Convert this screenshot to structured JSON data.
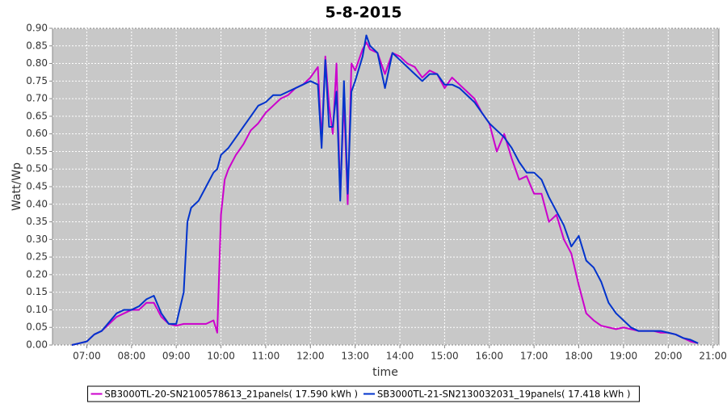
{
  "chart_data": {
    "type": "line",
    "title": "5-8-2015",
    "x_label": "time",
    "y_label": "Watt/Wp",
    "x": [
      "06:40",
      "06:50",
      "07:00",
      "07:10",
      "07:20",
      "07:30",
      "07:40",
      "07:50",
      "08:00",
      "08:10",
      "08:20",
      "08:30",
      "08:40",
      "08:50",
      "09:00",
      "09:10",
      "09:15",
      "09:20",
      "09:30",
      "09:40",
      "09:50",
      "09:55",
      "10:00",
      "10:05",
      "10:10",
      "10:20",
      "10:30",
      "10:40",
      "10:50",
      "11:00",
      "11:10",
      "11:20",
      "11:30",
      "11:40",
      "11:50",
      "12:00",
      "12:10",
      "12:15",
      "12:20",
      "12:25",
      "12:30",
      "12:35",
      "12:40",
      "12:45",
      "12:50",
      "12:55",
      "13:00",
      "13:10",
      "13:15",
      "13:20",
      "13:30",
      "13:40",
      "13:50",
      "14:00",
      "14:10",
      "14:20",
      "14:30",
      "14:40",
      "14:50",
      "15:00",
      "15:10",
      "15:20",
      "15:30",
      "15:40",
      "15:50",
      "16:00",
      "16:10",
      "16:20",
      "16:30",
      "16:40",
      "16:50",
      "17:00",
      "17:10",
      "17:20",
      "17:30",
      "17:40",
      "17:50",
      "18:00",
      "18:10",
      "18:20",
      "18:30",
      "18:40",
      "18:50",
      "19:00",
      "19:10",
      "19:20",
      "19:30",
      "19:40",
      "19:50",
      "20:00",
      "20:10",
      "20:20",
      "20:30",
      "20:40"
    ],
    "series": [
      {
        "name": "SB3000TL-20-SN2100578613_21panels( 17.590 kWh )",
        "color": "#cc00cc",
        "values": [
          0,
          0.005,
          0.01,
          0.03,
          0.04,
          0.06,
          0.08,
          0.09,
          0.1,
          0.1,
          0.12,
          0.12,
          0.08,
          0.06,
          0.055,
          0.06,
          0.06,
          0.06,
          0.06,
          0.06,
          0.07,
          0.035,
          0.37,
          0.47,
          0.5,
          0.54,
          0.57,
          0.61,
          0.63,
          0.66,
          0.68,
          0.7,
          0.71,
          0.73,
          0.74,
          0.76,
          0.79,
          0.58,
          0.82,
          0.68,
          0.6,
          0.8,
          0.42,
          0.7,
          0.4,
          0.8,
          0.78,
          0.84,
          0.86,
          0.84,
          0.83,
          0.77,
          0.83,
          0.82,
          0.8,
          0.79,
          0.76,
          0.78,
          0.77,
          0.73,
          0.76,
          0.74,
          0.72,
          0.7,
          0.66,
          0.63,
          0.55,
          0.6,
          0.53,
          0.47,
          0.48,
          0.43,
          0.43,
          0.35,
          0.37,
          0.3,
          0.26,
          0.17,
          0.09,
          0.07,
          0.055,
          0.05,
          0.045,
          0.05,
          0.045,
          0.04,
          0.04,
          0.04,
          0.035,
          0.035,
          0.03,
          0.02,
          0.01,
          0.005
        ]
      },
      {
        "name": "SB3000TL-21-SN2130032031_19panels( 17.418 kWh )",
        "color": "#0033cc",
        "values": [
          0,
          0.005,
          0.01,
          0.03,
          0.04,
          0.065,
          0.09,
          0.1,
          0.1,
          0.11,
          0.13,
          0.14,
          0.09,
          0.06,
          0.06,
          0.15,
          0.35,
          0.39,
          0.41,
          0.45,
          0.49,
          0.5,
          0.54,
          0.55,
          0.56,
          0.59,
          0.62,
          0.65,
          0.68,
          0.69,
          0.71,
          0.71,
          0.72,
          0.73,
          0.74,
          0.75,
          0.74,
          0.56,
          0.81,
          0.62,
          0.62,
          0.72,
          0.41,
          0.75,
          0.43,
          0.72,
          0.75,
          0.82,
          0.88,
          0.85,
          0.83,
          0.73,
          0.83,
          0.81,
          0.79,
          0.77,
          0.75,
          0.77,
          0.77,
          0.74,
          0.74,
          0.73,
          0.71,
          0.69,
          0.66,
          0.63,
          0.61,
          0.59,
          0.56,
          0.52,
          0.49,
          0.49,
          0.47,
          0.42,
          0.38,
          0.34,
          0.28,
          0.31,
          0.24,
          0.22,
          0.18,
          0.12,
          0.09,
          0.07,
          0.05,
          0.04,
          0.04,
          0.04,
          0.04,
          0.035,
          0.03,
          0.02,
          0.015,
          0.005
        ]
      }
    ],
    "xlim": [
      "06:14",
      "21:08"
    ],
    "xticks": [
      "07:00",
      "08:00",
      "09:00",
      "10:00",
      "11:00",
      "12:00",
      "13:00",
      "14:00",
      "15:00",
      "16:00",
      "17:00",
      "18:00",
      "19:00",
      "20:00",
      "21:00"
    ],
    "ylim": [
      0,
      0.9
    ],
    "yticks": [
      {
        "value": 0,
        "label": "0.00"
      },
      0.05,
      {
        "value": 0.1,
        "label": "0.10"
      },
      0.15,
      {
        "value": 0.2,
        "label": "0.20"
      },
      0.25,
      {
        "value": 0.3,
        "label": "0.30"
      },
      0.35,
      {
        "value": 0.4,
        "label": "0.40"
      },
      0.45,
      {
        "value": 0.5,
        "label": "0.50"
      },
      0.55,
      {
        "value": 0.6,
        "label": "0.60"
      },
      0.65,
      {
        "value": 0.7,
        "label": "0.70"
      },
      0.75,
      {
        "value": 0.8,
        "label": "0.80"
      },
      0.85,
      {
        "value": 0.9,
        "label": "0.90"
      }
    ],
    "grid": true,
    "plot_background": "#c8c8c8",
    "legend": "bottom"
  }
}
